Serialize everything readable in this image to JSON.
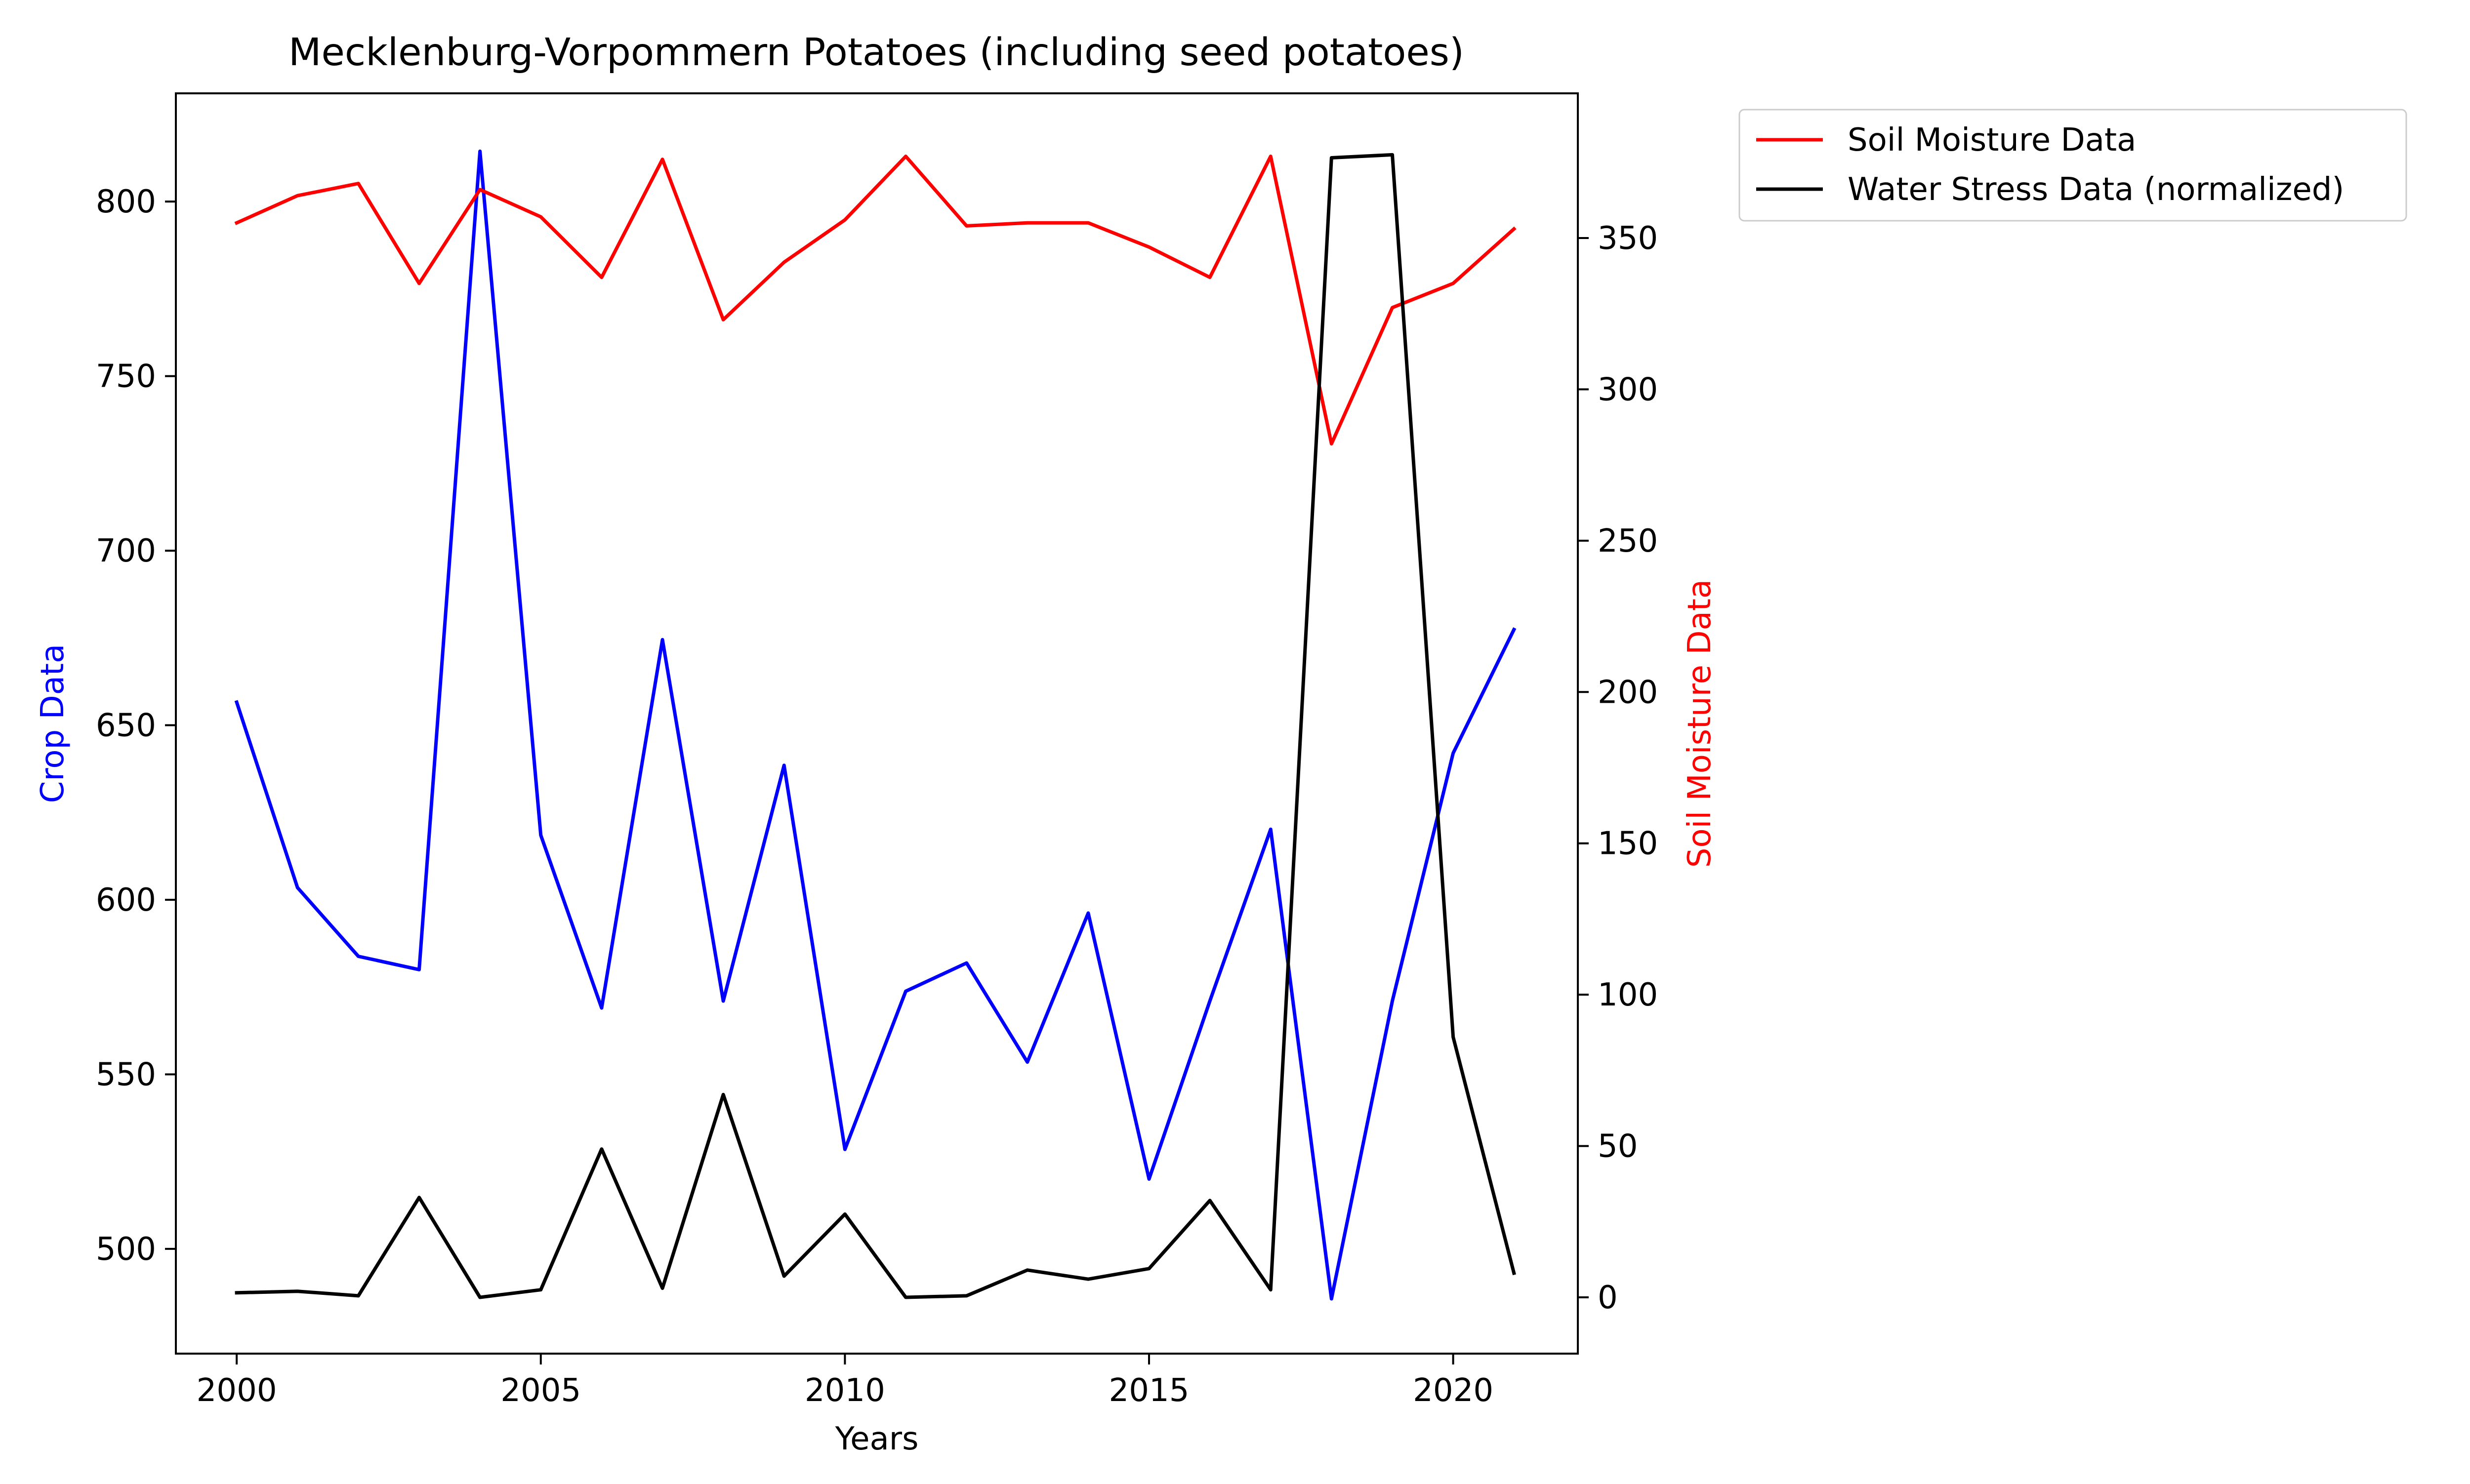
{
  "chart_data": {
    "type": "line",
    "title": "Mecklenburg-Vorpommern Potatoes (including seed potatoes)",
    "xlabel": "Years",
    "ylabel_left": "Crop Data",
    "ylabel_right": "Soil Moisture Data",
    "xlim": [
      1999,
      2022.05
    ],
    "ylim_left": [
      470,
      831
    ],
    "ylim_right": [
      -18.6,
      397.8
    ],
    "x_ticks": [
      2000,
      2005,
      2010,
      2015,
      2020
    ],
    "y_ticks_left": [
      500,
      550,
      600,
      650,
      700,
      750,
      800
    ],
    "y_ticks_right": [
      0,
      50,
      100,
      150,
      200,
      250,
      300,
      350
    ],
    "grid": false,
    "legend_position": "outside-upper-right",
    "x": [
      2000,
      2001,
      2002,
      2003,
      2004,
      2005,
      2006,
      2007,
      2008,
      2009,
      2010,
      2011,
      2012,
      2013,
      2014,
      2015,
      2016,
      2017,
      2018,
      2019,
      2020,
      2021
    ],
    "series": [
      {
        "id": "crop",
        "axis": "left",
        "color": "#0000ff",
        "in_legend": false,
        "values": [
          656.6,
          603.5,
          583.8,
          580.0,
          814.4,
          618.5,
          569.0,
          674.5,
          571.0,
          638.5,
          528.5,
          573.8,
          581.9,
          553.5,
          596.2,
          520.0,
          571.0,
          620.2,
          485.7,
          571.0,
          642.0,
          677.4
        ]
      },
      {
        "id": "soil",
        "axis": "right",
        "name": "Soil Moisture Data",
        "color": "#ff0000",
        "in_legend": true,
        "values": [
          355,
          364,
          368,
          335,
          366,
          357,
          337,
          376,
          323,
          342,
          356,
          377,
          354,
          355,
          355,
          347,
          337,
          377,
          282,
          327,
          335,
          353
        ]
      },
      {
        "id": "stress",
        "axis": "right",
        "name": "Water Stress Data (normalized)",
        "color": "#000000",
        "in_legend": true,
        "values": [
          1.5,
          2,
          0.5,
          33,
          0,
          2.5,
          49,
          3,
          67,
          7,
          27.5,
          0,
          0.5,
          9,
          6,
          9.5,
          32,
          2.5,
          376.5,
          377.5,
          86,
          8
        ]
      }
    ]
  },
  "colors": {
    "left_axis_label": "#0000ff",
    "right_axis_label": "#ff0000",
    "axes": "#000000",
    "background": "#ffffff"
  }
}
